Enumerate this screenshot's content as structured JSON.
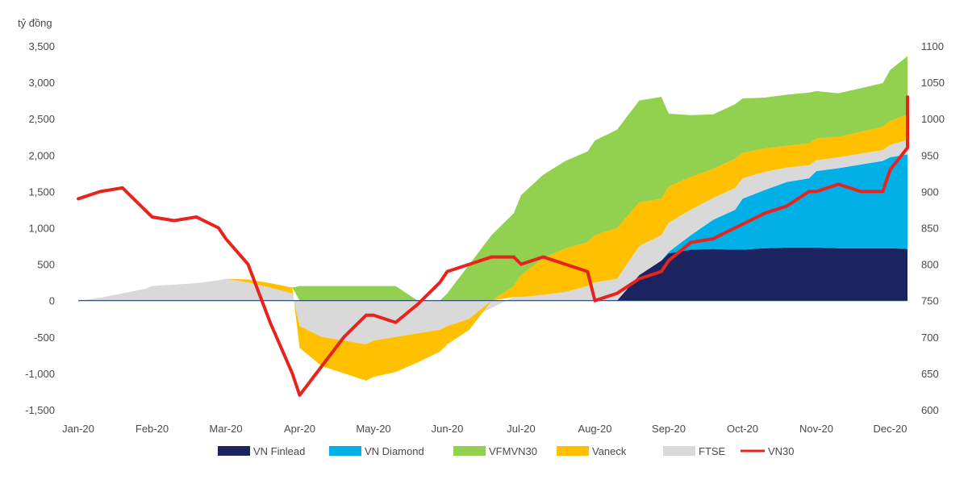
{
  "chart_data": {
    "type": "area",
    "title": "",
    "y_unit_label": "tỷ đồng",
    "left_axis": {
      "min": -1500,
      "max": 3500,
      "ticks": [
        3500,
        3000,
        2500,
        2000,
        1500,
        1000,
        500,
        0,
        -500,
        -1000,
        -1500
      ],
      "tick_labels": [
        "3,500",
        "3,000",
        "2,500",
        "2,000",
        "1,500",
        "1,000",
        "500",
        "0",
        "-500",
        "-1,000",
        "-1,500"
      ]
    },
    "right_axis": {
      "min": 600,
      "max": 1100,
      "ticks": [
        1100,
        1050,
        1000,
        950,
        900,
        850,
        800,
        750,
        700,
        650,
        600
      ],
      "tick_labels": [
        "1100",
        "1050",
        "1000",
        "950",
        "900",
        "850",
        "800",
        "750",
        "700",
        "650",
        "600"
      ]
    },
    "x_ticks": [
      "Jan-20",
      "Feb-20",
      "Mar-20",
      "Apr-20",
      "May-20",
      "Jun-20",
      "Jul-20",
      "Aug-20",
      "Sep-20",
      "Oct-20",
      "Nov-20",
      "Dec-20"
    ],
    "x": [
      0.0,
      0.3,
      0.6,
      0.9,
      1.0,
      1.3,
      1.6,
      1.9,
      2.0,
      2.3,
      2.6,
      2.9,
      3.0,
      3.3,
      3.6,
      3.9,
      4.0,
      4.3,
      4.6,
      4.9,
      5.0,
      5.3,
      5.6,
      5.9,
      6.0,
      6.3,
      6.6,
      6.9,
      7.0,
      7.3,
      7.6,
      7.9,
      8.0,
      8.3,
      8.6,
      8.9,
      9.0,
      9.3,
      9.6,
      9.9,
      10.0,
      10.3,
      10.6,
      10.9,
      11.0,
      11.3,
      11.6,
      11.85
    ],
    "series": [
      {
        "name": "VN Finlead",
        "color": "#1b2460",
        "values": [
          0,
          0,
          0,
          0,
          0,
          0,
          0,
          0,
          0,
          0,
          0,
          0,
          0,
          0,
          0,
          0,
          0,
          0,
          0,
          0,
          0,
          0,
          0,
          0,
          0,
          0,
          0,
          0,
          0,
          0,
          350,
          550,
          650,
          700,
          710,
          700,
          700,
          720,
          730,
          730,
          730,
          720,
          720,
          720,
          720,
          710,
          700,
          690
        ]
      },
      {
        "name": "VN Diamond",
        "color": "#00b0e6",
        "values": [
          0,
          0,
          0,
          0,
          0,
          0,
          0,
          0,
          0,
          0,
          0,
          0,
          0,
          0,
          0,
          0,
          0,
          0,
          0,
          0,
          0,
          0,
          0,
          0,
          0,
          0,
          0,
          0,
          0,
          0,
          0,
          0,
          20,
          200,
          400,
          550,
          700,
          800,
          900,
          950,
          1050,
          1100,
          1150,
          1200,
          1250,
          1300,
          1350,
          1400
        ]
      },
      {
        "name": "FTSE",
        "color": "#d9d9d9",
        "values": [
          0,
          40,
          100,
          160,
          200,
          220,
          240,
          280,
          300,
          250,
          180,
          100,
          -350,
          -500,
          -550,
          -600,
          -550,
          -500,
          -450,
          -400,
          -350,
          -250,
          -100,
          50,
          50,
          80,
          120,
          200,
          250,
          300,
          400,
          350,
          400,
          350,
          300,
          300,
          280,
          250,
          200,
          180,
          150,
          150,
          150,
          150,
          170,
          200,
          250,
          300
        ]
      },
      {
        "name": "Vaneck",
        "color": "#ffc000",
        "values": [
          0,
          0,
          0,
          0,
          0,
          0,
          0,
          0,
          0,
          40,
          60,
          80,
          -300,
          -400,
          -450,
          -500,
          -500,
          -480,
          -400,
          -300,
          -250,
          -150,
          0,
          150,
          300,
          500,
          600,
          600,
          650,
          700,
          600,
          500,
          500,
          450,
          400,
          400,
          350,
          320,
          300,
          300,
          300,
          280,
          300,
          320,
          330,
          350,
          400,
          450
        ]
      },
      {
        "name": "VFMVN30",
        "color": "#92d050",
        "values": [
          0,
          0,
          0,
          0,
          0,
          0,
          0,
          0,
          0,
          0,
          0,
          0,
          200,
          200,
          200,
          200,
          200,
          200,
          0,
          0,
          100,
          500,
          900,
          1000,
          1100,
          1150,
          1200,
          1250,
          1300,
          1350,
          1400,
          1400,
          1000,
          850,
          750,
          750,
          750,
          700,
          700,
          700,
          650,
          600,
          600,
          600,
          700,
          800,
          850,
          900
        ]
      },
      {
        "name": "VN30",
        "color": "#e8231d",
        "axis": "right",
        "values": [
          890,
          900,
          905,
          875,
          865,
          860,
          865,
          850,
          835,
          800,
          720,
          650,
          620,
          660,
          700,
          730,
          730,
          720,
          745,
          775,
          790,
          800,
          810,
          810,
          800,
          810,
          800,
          790,
          750,
          760,
          780,
          790,
          805,
          830,
          835,
          850,
          855,
          870,
          880,
          900,
          900,
          910,
          900,
          900,
          930,
          960,
          990,
          1030
        ]
      }
    ]
  },
  "legend": [
    {
      "label": "VN Finlead",
      "color": "#1b2460",
      "kind": "box"
    },
    {
      "label": "VN Diamond",
      "color": "#00b0e6",
      "kind": "box"
    },
    {
      "label": "VFMVN30",
      "color": "#92d050",
      "kind": "box"
    },
    {
      "label": "Vaneck",
      "color": "#ffc000",
      "kind": "box"
    },
    {
      "label": "FTSE",
      "color": "#d9d9d9",
      "kind": "box"
    },
    {
      "label": "VN30",
      "color": "#e8231d",
      "kind": "line"
    }
  ]
}
